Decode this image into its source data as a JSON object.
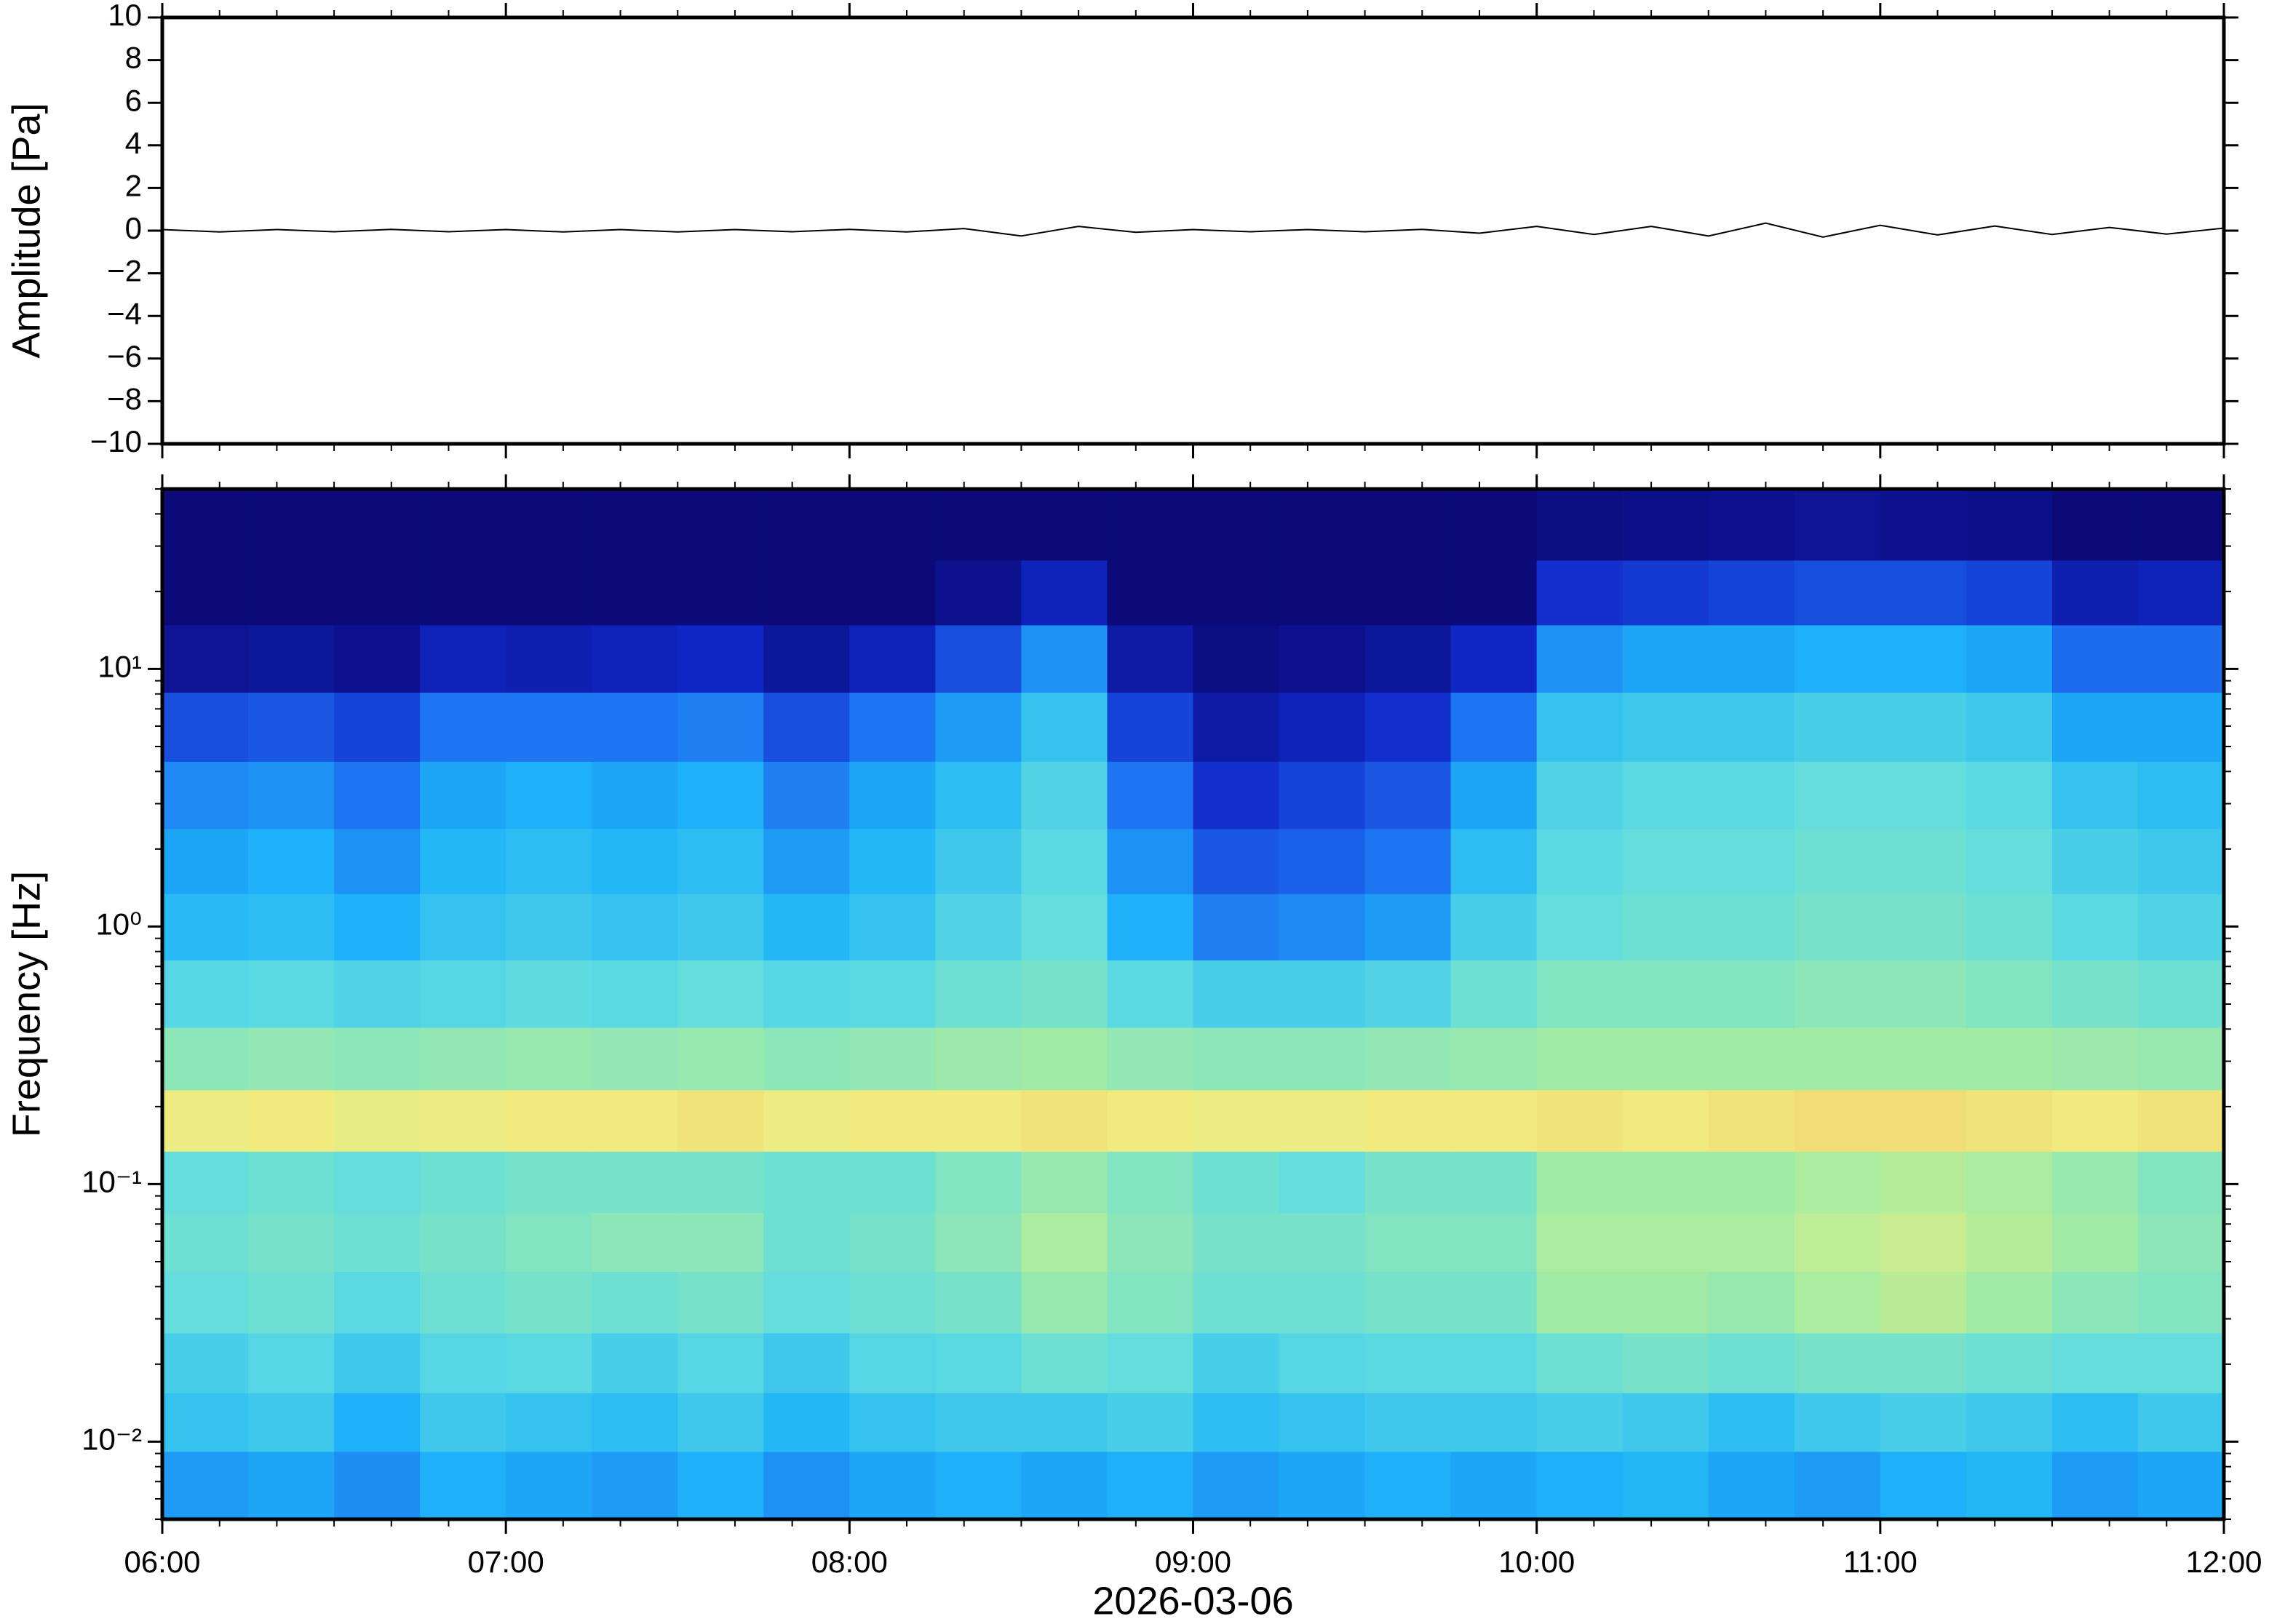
{
  "chart_data": [
    {
      "type": "line",
      "ylabel": "Amplitude [Pa]",
      "x": [
        "06:00",
        "06:10",
        "06:20",
        "06:30",
        "06:40",
        "06:50",
        "07:00",
        "07:10",
        "07:20",
        "07:30",
        "07:40",
        "07:50",
        "08:00",
        "08:10",
        "08:20",
        "08:30",
        "08:40",
        "08:50",
        "09:00",
        "09:10",
        "09:20",
        "09:30",
        "09:40",
        "09:50",
        "10:00",
        "10:10",
        "10:20",
        "10:30",
        "10:40",
        "10:50",
        "11:00",
        "11:10",
        "11:20",
        "11:30",
        "11:40",
        "11:50",
        "12:00"
      ],
      "series": [
        {
          "color": "#000000",
          "values": [
            0.05,
            -0.06,
            0.05,
            -0.05,
            0.06,
            -0.05,
            0.05,
            -0.06,
            0.05,
            -0.06,
            0.05,
            -0.05,
            0.06,
            -0.06,
            0.1,
            -0.25,
            0.2,
            -0.08,
            0.05,
            -0.05,
            0.05,
            -0.05,
            0.06,
            -0.12,
            0.2,
            -0.18,
            0.2,
            -0.25,
            0.35,
            -0.3,
            0.25,
            -0.2,
            0.22,
            -0.18,
            0.15,
            -0.16,
            0.12
          ]
        }
      ],
      "xlim": [
        "06:00",
        "12:00"
      ],
      "xticks": [
        "06:00",
        "07:00",
        "08:00",
        "09:00",
        "10:00",
        "11:00",
        "12:00"
      ],
      "ylim": [
        -10,
        10
      ],
      "yticks": [
        {
          "value": -10,
          "label": "−10"
        },
        {
          "value": -8,
          "label": "−8"
        },
        {
          "value": -6,
          "label": "−6"
        },
        {
          "value": -4,
          "label": "−4"
        },
        {
          "value": -2,
          "label": "−2"
        },
        0,
        2,
        4,
        6,
        8,
        10
      ]
    },
    {
      "type": "heatmap",
      "ylabel": "Frequency [Hz]",
      "xlabel": "2026-03-06",
      "y_scale": "log",
      "x": [
        "06:00",
        "06:15",
        "06:30",
        "06:45",
        "07:00",
        "07:15",
        "07:30",
        "07:45",
        "08:00",
        "08:15",
        "08:30",
        "08:45",
        "09:00",
        "09:15",
        "09:30",
        "09:45",
        "10:00",
        "10:15",
        "10:30",
        "10:45",
        "11:00",
        "11:15",
        "11:30",
        "11:45"
      ],
      "y": [
        0.007,
        0.012,
        0.02,
        0.035,
        0.06,
        0.1,
        0.18,
        0.3,
        0.55,
        1,
        1.8,
        3.2,
        6,
        11,
        20,
        35
      ],
      "z": [
        [
          0.38,
          0.4,
          0.35,
          0.42,
          0.4,
          0.38,
          0.42,
          0.36,
          0.4,
          0.42,
          0.4,
          0.42,
          0.38,
          0.4,
          0.42,
          0.4,
          0.42,
          0.44,
          0.4,
          0.38,
          0.42,
          0.44,
          0.38,
          0.4
        ],
        [
          0.48,
          0.5,
          0.42,
          0.5,
          0.48,
          0.46,
          0.5,
          0.44,
          0.48,
          0.5,
          0.5,
          0.52,
          0.46,
          0.48,
          0.5,
          0.5,
          0.52,
          0.5,
          0.46,
          0.5,
          0.52,
          0.5,
          0.46,
          0.5
        ],
        [
          0.52,
          0.55,
          0.5,
          0.55,
          0.56,
          0.52,
          0.55,
          0.5,
          0.55,
          0.56,
          0.6,
          0.58,
          0.52,
          0.55,
          0.56,
          0.56,
          0.6,
          0.62,
          0.6,
          0.62,
          0.62,
          0.6,
          0.58,
          0.58
        ],
        [
          0.58,
          0.6,
          0.56,
          0.6,
          0.62,
          0.6,
          0.62,
          0.58,
          0.6,
          0.62,
          0.68,
          0.64,
          0.6,
          0.6,
          0.62,
          0.62,
          0.7,
          0.7,
          0.68,
          0.72,
          0.75,
          0.7,
          0.66,
          0.64
        ],
        [
          0.6,
          0.62,
          0.6,
          0.62,
          0.64,
          0.66,
          0.66,
          0.6,
          0.62,
          0.66,
          0.72,
          0.66,
          0.62,
          0.62,
          0.64,
          0.64,
          0.72,
          0.72,
          0.72,
          0.76,
          0.78,
          0.74,
          0.7,
          0.66
        ],
        [
          0.58,
          0.6,
          0.58,
          0.6,
          0.62,
          0.62,
          0.62,
          0.6,
          0.6,
          0.64,
          0.68,
          0.64,
          0.6,
          0.58,
          0.62,
          0.62,
          0.7,
          0.7,
          0.7,
          0.72,
          0.74,
          0.72,
          0.68,
          0.64
        ],
        [
          0.85,
          0.86,
          0.84,
          0.85,
          0.86,
          0.86,
          0.87,
          0.85,
          0.86,
          0.86,
          0.87,
          0.86,
          0.85,
          0.85,
          0.86,
          0.86,
          0.87,
          0.86,
          0.87,
          0.88,
          0.88,
          0.87,
          0.86,
          0.87
        ],
        [
          0.66,
          0.67,
          0.66,
          0.67,
          0.68,
          0.67,
          0.68,
          0.66,
          0.67,
          0.69,
          0.7,
          0.67,
          0.66,
          0.66,
          0.67,
          0.68,
          0.7,
          0.7,
          0.7,
          0.7,
          0.7,
          0.7,
          0.69,
          0.68
        ],
        [
          0.55,
          0.56,
          0.54,
          0.55,
          0.57,
          0.56,
          0.58,
          0.55,
          0.56,
          0.6,
          0.62,
          0.56,
          0.52,
          0.52,
          0.54,
          0.6,
          0.64,
          0.64,
          0.64,
          0.66,
          0.66,
          0.64,
          0.62,
          0.6
        ],
        [
          0.45,
          0.46,
          0.42,
          0.48,
          0.5,
          0.48,
          0.5,
          0.44,
          0.48,
          0.54,
          0.58,
          0.42,
          0.32,
          0.34,
          0.38,
          0.52,
          0.58,
          0.6,
          0.6,
          0.62,
          0.62,
          0.6,
          0.56,
          0.54
        ],
        [
          0.4,
          0.42,
          0.36,
          0.44,
          0.46,
          0.44,
          0.46,
          0.38,
          0.44,
          0.5,
          0.56,
          0.36,
          0.24,
          0.26,
          0.3,
          0.46,
          0.56,
          0.58,
          0.58,
          0.6,
          0.6,
          0.58,
          0.52,
          0.5
        ],
        [
          0.34,
          0.36,
          0.3,
          0.4,
          0.42,
          0.4,
          0.42,
          0.32,
          0.4,
          0.46,
          0.54,
          0.3,
          0.16,
          0.2,
          0.24,
          0.4,
          0.54,
          0.56,
          0.56,
          0.58,
          0.58,
          0.56,
          0.48,
          0.46
        ],
        [
          0.22,
          0.24,
          0.2,
          0.3,
          0.3,
          0.3,
          0.32,
          0.22,
          0.3,
          0.38,
          0.48,
          0.2,
          0.08,
          0.12,
          0.16,
          0.3,
          0.48,
          0.5,
          0.5,
          0.52,
          0.52,
          0.5,
          0.4,
          0.4
        ],
        [
          0.05,
          0.06,
          0.04,
          0.12,
          0.1,
          0.12,
          0.14,
          0.06,
          0.12,
          0.22,
          0.36,
          0.08,
          0.02,
          0.04,
          0.06,
          0.14,
          0.36,
          0.4,
          0.4,
          0.42,
          0.42,
          0.4,
          0.28,
          0.28
        ],
        [
          0,
          0,
          0,
          0,
          0,
          0,
          0,
          0,
          0,
          0.04,
          0.12,
          0,
          0,
          0,
          0,
          0,
          0.16,
          0.18,
          0.2,
          0.22,
          0.22,
          0.2,
          0.1,
          0.12
        ],
        [
          0,
          0,
          0,
          0,
          0,
          0,
          0,
          0,
          0,
          0,
          0,
          0,
          0,
          0,
          0,
          0,
          0.02,
          0.03,
          0.04,
          0.05,
          0.04,
          0.03,
          0,
          0
        ]
      ],
      "colormap": [
        "#0b0a78",
        "#1028c8",
        "#1e6ef0",
        "#1eb4f8",
        "#60dce0",
        "#a8eca0",
        "#f0ec80",
        "#f08c40"
      ],
      "xlim": [
        "06:00",
        "12:00"
      ],
      "xticks": [
        "06:00",
        "07:00",
        "08:00",
        "09:00",
        "10:00",
        "11:00",
        "12:00"
      ],
      "ylim": [
        0.005,
        50
      ],
      "yticks": [
        {
          "value": 0.01,
          "label": "10⁻²"
        },
        {
          "value": 0.1,
          "label": "10⁻¹"
        },
        {
          "value": 1,
          "label": "10⁰"
        },
        {
          "value": 10,
          "label": "10¹"
        }
      ]
    }
  ]
}
